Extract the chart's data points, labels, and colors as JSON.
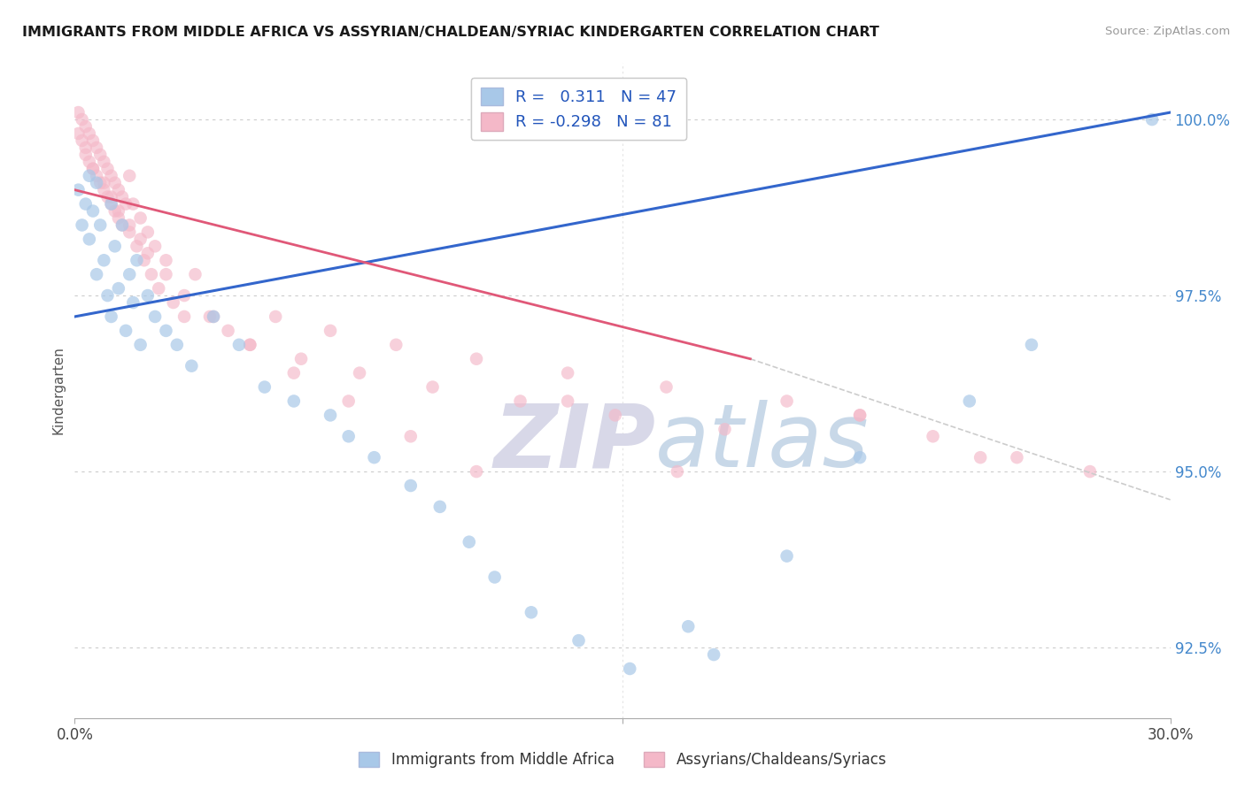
{
  "title": "IMMIGRANTS FROM MIDDLE AFRICA VS ASSYRIAN/CHALDEAN/SYRIAC KINDERGARTEN CORRELATION CHART",
  "source": "Source: ZipAtlas.com",
  "ylabel": "Kindergarten",
  "xlim": [
    0.0,
    0.3
  ],
  "ylim": [
    0.915,
    1.008
  ],
  "yticks": [
    0.925,
    0.95,
    0.975,
    1.0
  ],
  "ytick_labels": [
    "92.5%",
    "95.0%",
    "97.5%",
    "100.0%"
  ],
  "blue_R": 0.311,
  "blue_N": 47,
  "pink_R": -0.298,
  "pink_N": 81,
  "blue_color": "#a8c8e8",
  "pink_color": "#f4b8c8",
  "blue_line_color": "#3366cc",
  "pink_line_color": "#e05878",
  "dashed_line_color": "#cccccc",
  "background_color": "#ffffff",
  "watermark_zip": "ZIP",
  "watermark_atlas": "atlas",
  "watermark_color_zip": "#d8d8e8",
  "watermark_color_atlas": "#c8d8e8",
  "legend_label_blue": "Immigrants from Middle Africa",
  "legend_label_pink": "Assyrians/Chaldeans/Syriacs",
  "blue_line_x0": 0.0,
  "blue_line_y0": 0.972,
  "blue_line_x1": 0.3,
  "blue_line_y1": 1.001,
  "pink_line_x0": 0.0,
  "pink_line_y0": 0.99,
  "pink_line_x1_solid": 0.185,
  "pink_line_y1_solid": 0.966,
  "pink_line_x1_dash": 0.3,
  "pink_line_y1_dash": 0.946,
  "blue_x": [
    0.001,
    0.002,
    0.003,
    0.004,
    0.004,
    0.005,
    0.006,
    0.006,
    0.007,
    0.008,
    0.009,
    0.01,
    0.01,
    0.011,
    0.012,
    0.013,
    0.014,
    0.015,
    0.016,
    0.017,
    0.018,
    0.02,
    0.022,
    0.025,
    0.028,
    0.032,
    0.038,
    0.045,
    0.052,
    0.06,
    0.07,
    0.075,
    0.082,
    0.092,
    0.1,
    0.108,
    0.115,
    0.125,
    0.138,
    0.152,
    0.168,
    0.175,
    0.195,
    0.215,
    0.245,
    0.262,
    0.295
  ],
  "blue_y": [
    0.99,
    0.985,
    0.988,
    0.992,
    0.983,
    0.987,
    0.991,
    0.978,
    0.985,
    0.98,
    0.975,
    0.988,
    0.972,
    0.982,
    0.976,
    0.985,
    0.97,
    0.978,
    0.974,
    0.98,
    0.968,
    0.975,
    0.972,
    0.97,
    0.968,
    0.965,
    0.972,
    0.968,
    0.962,
    0.96,
    0.958,
    0.955,
    0.952,
    0.948,
    0.945,
    0.94,
    0.935,
    0.93,
    0.926,
    0.922,
    0.928,
    0.924,
    0.938,
    0.952,
    0.96,
    0.968,
    1.0
  ],
  "pink_x": [
    0.001,
    0.001,
    0.002,
    0.002,
    0.003,
    0.003,
    0.004,
    0.004,
    0.005,
    0.005,
    0.006,
    0.006,
    0.007,
    0.007,
    0.008,
    0.008,
    0.009,
    0.009,
    0.01,
    0.01,
    0.011,
    0.011,
    0.012,
    0.012,
    0.013,
    0.013,
    0.014,
    0.015,
    0.015,
    0.016,
    0.017,
    0.018,
    0.019,
    0.02,
    0.021,
    0.022,
    0.023,
    0.025,
    0.027,
    0.03,
    0.033,
    0.037,
    0.042,
    0.048,
    0.055,
    0.062,
    0.07,
    0.078,
    0.088,
    0.098,
    0.11,
    0.122,
    0.135,
    0.148,
    0.162,
    0.178,
    0.195,
    0.215,
    0.235,
    0.258,
    0.278,
    0.003,
    0.005,
    0.008,
    0.01,
    0.012,
    0.015,
    0.018,
    0.02,
    0.025,
    0.03,
    0.038,
    0.048,
    0.06,
    0.075,
    0.092,
    0.11,
    0.135,
    0.165,
    0.215,
    0.248
  ],
  "pink_y": [
    1.001,
    0.998,
    1.0,
    0.997,
    0.999,
    0.996,
    0.998,
    0.994,
    0.997,
    0.993,
    0.996,
    0.992,
    0.995,
    0.991,
    0.994,
    0.99,
    0.993,
    0.989,
    0.992,
    0.988,
    0.991,
    0.987,
    0.99,
    0.986,
    0.989,
    0.985,
    0.988,
    0.992,
    0.984,
    0.988,
    0.982,
    0.986,
    0.98,
    0.984,
    0.978,
    0.982,
    0.976,
    0.98,
    0.974,
    0.972,
    0.978,
    0.972,
    0.97,
    0.968,
    0.972,
    0.966,
    0.97,
    0.964,
    0.968,
    0.962,
    0.966,
    0.96,
    0.964,
    0.958,
    0.962,
    0.956,
    0.96,
    0.958,
    0.955,
    0.952,
    0.95,
    0.995,
    0.993,
    0.991,
    0.989,
    0.987,
    0.985,
    0.983,
    0.981,
    0.978,
    0.975,
    0.972,
    0.968,
    0.964,
    0.96,
    0.955,
    0.95,
    0.96,
    0.95,
    0.958,
    0.952
  ]
}
